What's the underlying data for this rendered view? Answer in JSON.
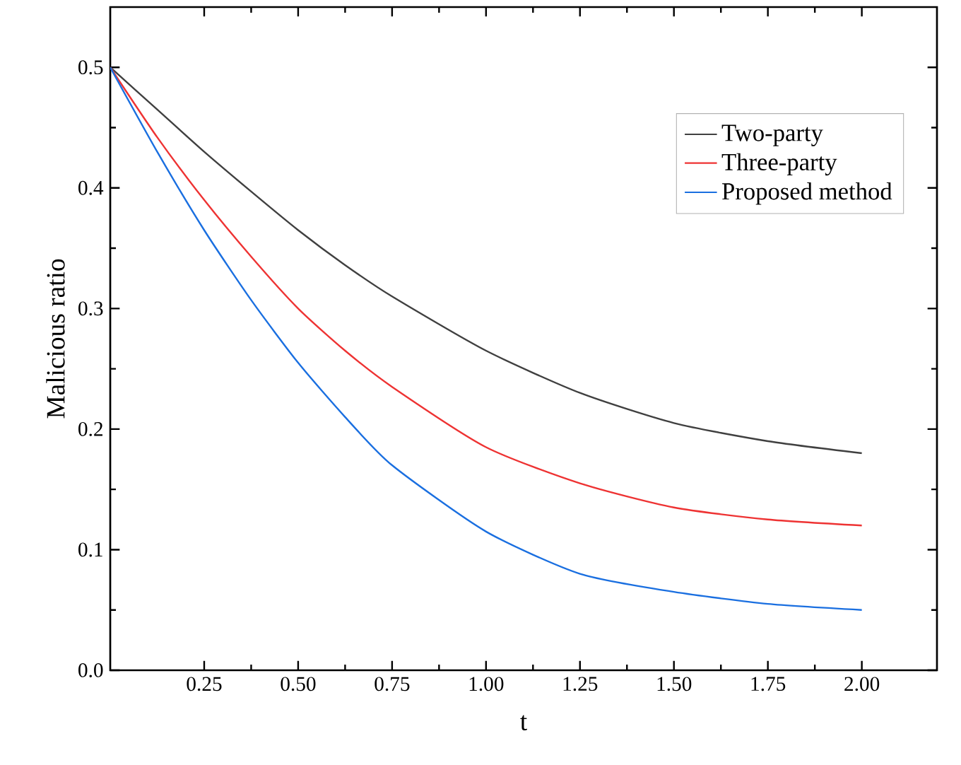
{
  "chart_data": {
    "type": "line",
    "xlabel": "t",
    "ylabel": "Malicious ratio",
    "xlim": [
      0,
      2.2
    ],
    "ylim": [
      0,
      0.55
    ],
    "xticks": [
      {
        "value": 0.25,
        "label": "0.25"
      },
      {
        "value": 0.5,
        "label": "0.50"
      },
      {
        "value": 0.75,
        "label": "0.75"
      },
      {
        "value": 1.0,
        "label": "1.00"
      },
      {
        "value": 1.25,
        "label": "1.25"
      },
      {
        "value": 1.5,
        "label": "1.50"
      },
      {
        "value": 1.75,
        "label": "1.75"
      },
      {
        "value": 2.0,
        "label": "2.00"
      }
    ],
    "yticks": [
      {
        "value": 0,
        "label": "0.0"
      },
      {
        "value": 0.1,
        "label": "0.1"
      },
      {
        "value": 0.2,
        "label": "0.2"
      },
      {
        "value": 0.3,
        "label": "0.3"
      },
      {
        "value": 0.4,
        "label": "0.4"
      },
      {
        "value": 0.5,
        "label": "0.5"
      }
    ],
    "x": [
      0,
      0.125,
      0.25,
      0.375,
      0.5,
      0.625,
      0.75,
      1.0,
      1.25,
      1.5,
      1.75,
      2.0
    ],
    "series": [
      {
        "name": "Two-party",
        "color": "#404040",
        "values": [
          0.5,
          0.465,
          0.43,
          0.397,
          0.365,
          0.336,
          0.31,
          0.265,
          0.23,
          0.205,
          0.19,
          0.18
        ]
      },
      {
        "name": "Three-party",
        "color": "#ee3333",
        "values": [
          0.5,
          0.442,
          0.39,
          0.343,
          0.3,
          0.265,
          0.235,
          0.185,
          0.155,
          0.135,
          0.125,
          0.12
        ]
      },
      {
        "name": "Proposed method",
        "color": "#1a6fe0",
        "values": [
          0.5,
          0.43,
          0.365,
          0.307,
          0.255,
          0.21,
          0.17,
          0.115,
          0.08,
          0.065,
          0.055,
          0.05
        ]
      }
    ],
    "legend": "top right",
    "grid": false,
    "marker": "none",
    "line_style": "solid"
  }
}
